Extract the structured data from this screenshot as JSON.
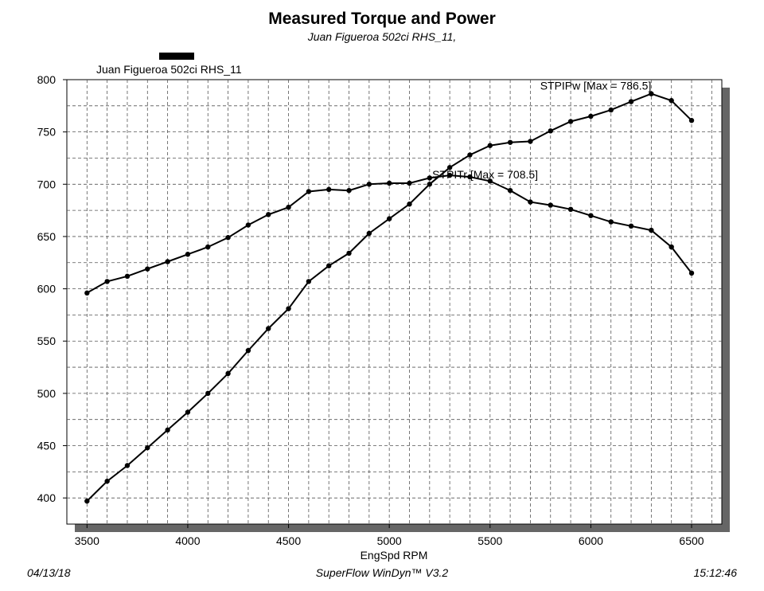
{
  "chart_data": {
    "type": "line",
    "title": "Measured Torque and Power",
    "subtitle": "Juan Figueroa 502ci RHS_11,",
    "legend": {
      "label": "Juan Figueroa 502ci RHS_11",
      "position": "top-left"
    },
    "xlabel": "EngSpd RPM",
    "ylabel": "",
    "xlim": [
      3400,
      6650
    ],
    "ylim": [
      375,
      800
    ],
    "xticks": [
      3500,
      4000,
      4500,
      5000,
      5500,
      6000,
      6500
    ],
    "yticks": [
      400,
      450,
      500,
      550,
      600,
      650,
      700,
      750,
      800
    ],
    "grid": true,
    "x": [
      3500,
      3600,
      3700,
      3800,
      3900,
      4000,
      4100,
      4200,
      4300,
      4400,
      4500,
      4600,
      4700,
      4800,
      4900,
      5000,
      5100,
      5200,
      5300,
      5400,
      5500,
      5600,
      5700,
      5800,
      5900,
      6000,
      6100,
      6200,
      6300,
      6400,
      6500
    ],
    "series": [
      {
        "name": "STPIPw",
        "annotation": "STPIPw [Max = 786.5]",
        "values": [
          397,
          416,
          431,
          448,
          465,
          482,
          500,
          519,
          541,
          562,
          581,
          607,
          622,
          634,
          653,
          667,
          681,
          700,
          716,
          728,
          737,
          740,
          741,
          751,
          760,
          765,
          771,
          779,
          786.5,
          780,
          761
        ]
      },
      {
        "name": "STPITr",
        "annotation": "STPITr [Max = 708.5]",
        "values": [
          596,
          607,
          612,
          619,
          626,
          633,
          640,
          649,
          661,
          671,
          678,
          693,
          695,
          694,
          700,
          701,
          701,
          706,
          708.5,
          707,
          703,
          694,
          683,
          680,
          676,
          670,
          664,
          660,
          656,
          640,
          615
        ]
      }
    ]
  },
  "footer": {
    "date": "04/13/18",
    "software": "SuperFlow WinDyn™ V3.2",
    "time": "15:12:46"
  }
}
